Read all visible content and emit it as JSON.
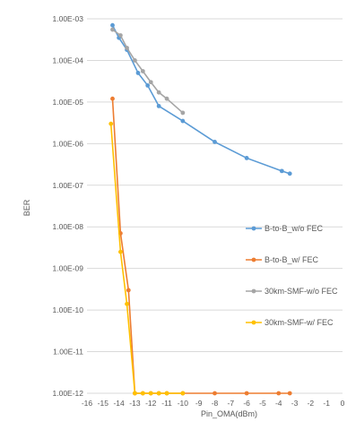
{
  "chart_data": {
    "type": "line",
    "xlabel": "Pin_OMA(dBm)",
    "ylabel": "BER",
    "xlim": [
      -16,
      0
    ],
    "x_ticks": [
      -16,
      -15,
      -14,
      -13,
      -12,
      -11,
      -10,
      -9,
      -8,
      -7,
      -6,
      -5,
      -4,
      -3,
      -2,
      -1,
      0
    ],
    "x_tick_labels": [
      "-16",
      "-15",
      "-14",
      "-13",
      "-12",
      "-11",
      "-10",
      "-9",
      "-8",
      "-7",
      "-6",
      "-5",
      "-4",
      "-3",
      "-2",
      "-1",
      "0"
    ],
    "y_scale": "log",
    "ylim": [
      1e-12,
      0.001
    ],
    "y_ticks": [
      0.001,
      0.0001,
      1e-05,
      1e-06,
      1e-07,
      1e-08,
      1e-09,
      1e-10,
      1e-11,
      1e-12
    ],
    "y_tick_labels": [
      "1.00E-03",
      "1.00E-04",
      "1.00E-05",
      "1.00E-06",
      "1.00E-07",
      "1.00E-08",
      "1.00E-09",
      "1.00E-10",
      "1.00E-11",
      "1.00E-12"
    ],
    "grid": "horizontal",
    "legend_position": "right",
    "series": [
      {
        "name": "B-to-B_w/o FEC",
        "color": "#5b9bd5",
        "points": [
          [
            -14.4,
            0.0007
          ],
          [
            -14.0,
            0.00035
          ],
          [
            -13.5,
            0.00018
          ],
          [
            -12.8,
            5e-05
          ],
          [
            -12.2,
            2.5e-05
          ],
          [
            -11.5,
            8e-06
          ],
          [
            -10.0,
            3.5e-06
          ],
          [
            -8.0,
            1.1e-06
          ],
          [
            -6.0,
            4.5e-07
          ],
          [
            -3.8,
            2.2e-07
          ],
          [
            -3.3,
            1.9e-07
          ]
        ]
      },
      {
        "name": "B-to-B_w/ FEC",
        "color": "#ed7d31",
        "points": [
          [
            -14.4,
            1.2e-05
          ],
          [
            -13.9,
            7e-09
          ],
          [
            -13.4,
            3e-10
          ],
          [
            -13.0,
            1e-12
          ],
          [
            -12.5,
            1e-12
          ],
          [
            -12.0,
            1e-12
          ],
          [
            -11.5,
            1e-12
          ],
          [
            -11.0,
            1e-12
          ],
          [
            -10.0,
            1e-12
          ],
          [
            -8.0,
            1e-12
          ],
          [
            -6.0,
            1e-12
          ],
          [
            -4.0,
            1e-12
          ],
          [
            -3.3,
            1e-12
          ]
        ]
      },
      {
        "name": "30km-SMF-w/o FEC",
        "color": "#a5a5a5",
        "points": [
          [
            -14.4,
            0.00055
          ],
          [
            -13.9,
            0.0004
          ],
          [
            -13.5,
            0.0002
          ],
          [
            -13.0,
            0.0001
          ],
          [
            -12.5,
            5.5e-05
          ],
          [
            -12.0,
            3e-05
          ],
          [
            -11.5,
            1.7e-05
          ],
          [
            -11.0,
            1.2e-05
          ],
          [
            -10.0,
            5.5e-06
          ]
        ]
      },
      {
        "name": "30km-SMF-w/ FEC",
        "color": "#ffc000",
        "points": [
          [
            -14.5,
            3e-06
          ],
          [
            -13.9,
            2.5e-09
          ],
          [
            -13.5,
            1.4e-10
          ],
          [
            -13.0,
            1e-12
          ],
          [
            -12.5,
            1e-12
          ],
          [
            -12.0,
            1e-12
          ],
          [
            -11.5,
            1e-12
          ],
          [
            -11.0,
            1e-12
          ],
          [
            -10.0,
            1e-12
          ]
        ]
      }
    ]
  }
}
